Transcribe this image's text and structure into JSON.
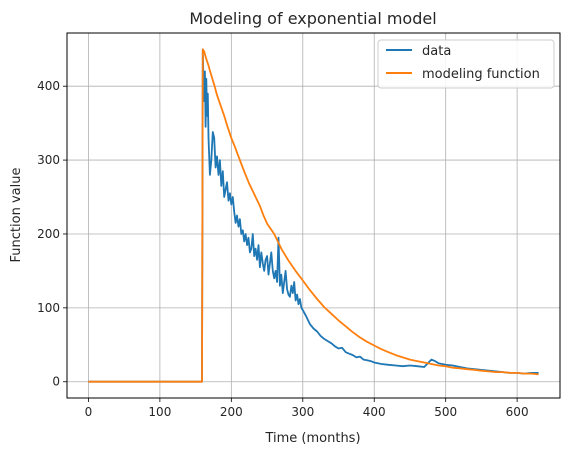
{
  "chart_data": {
    "type": "line",
    "title": "Modeling of exponential model",
    "xlabel": "Time (months)",
    "ylabel": "Function value",
    "xlim": [
      -30,
      660
    ],
    "ylim": [
      -22,
      472
    ],
    "xticks": [
      0,
      100,
      200,
      300,
      400,
      500,
      600
    ],
    "yticks": [
      0,
      100,
      200,
      300,
      400
    ],
    "grid": true,
    "legend_position": "top-right",
    "series": [
      {
        "name": "data",
        "color": "#1f77b4",
        "x": [
          0,
          159,
          160,
          161,
          162,
          163,
          164,
          165,
          166,
          167,
          168,
          170,
          172,
          174,
          176,
          178,
          180,
          182,
          184,
          186,
          188,
          190,
          192,
          194,
          196,
          198,
          200,
          202,
          204,
          206,
          208,
          210,
          212,
          214,
          216,
          218,
          220,
          222,
          224,
          226,
          228,
          230,
          232,
          234,
          236,
          238,
          240,
          242,
          244,
          246,
          248,
          250,
          252,
          254,
          256,
          258,
          260,
          262,
          264,
          266,
          268,
          270,
          272,
          274,
          276,
          278,
          280,
          282,
          284,
          286,
          288,
          290,
          292,
          294,
          296,
          298,
          300,
          305,
          310,
          315,
          320,
          325,
          330,
          335,
          340,
          345,
          350,
          355,
          360,
          365,
          370,
          375,
          380,
          385,
          390,
          395,
          400,
          410,
          420,
          430,
          440,
          450,
          460,
          470,
          480,
          485,
          490,
          495,
          500,
          510,
          520,
          530,
          540,
          550,
          560,
          570,
          580,
          590,
          600,
          610,
          620,
          630
        ],
        "y": [
          0,
          0,
          450,
          400,
          380,
          420,
          345,
          410,
          360,
          390,
          330,
          280,
          300,
          338,
          330,
          290,
          305,
          280,
          300,
          265,
          285,
          250,
          260,
          270,
          245,
          255,
          240,
          250,
          230,
          215,
          225,
          210,
          220,
          200,
          205,
          190,
          200,
          185,
          195,
          175,
          180,
          200,
          170,
          180,
          165,
          185,
          155,
          175,
          160,
          150,
          165,
          170,
          145,
          160,
          175,
          150,
          140,
          150,
          135,
          195,
          130,
          145,
          120,
          135,
          150,
          125,
          118,
          115,
          130,
          120,
          135,
          110,
          118,
          105,
          112,
          100,
          97,
          88,
          78,
          72,
          68,
          62,
          58,
          55,
          52,
          48,
          45,
          46,
          40,
          38,
          36,
          33,
          34,
          30,
          29,
          28,
          26,
          24,
          23,
          22,
          21,
          22,
          21,
          20,
          30,
          28,
          25,
          24,
          23,
          22,
          20,
          18,
          17,
          16,
          15,
          14,
          13,
          12,
          12,
          11,
          12,
          12
        ]
      },
      {
        "name": "modeling function",
        "color": "#ff7f0e",
        "x": [
          0,
          159,
          160,
          162,
          164,
          166,
          168,
          170,
          172,
          174,
          176,
          178,
          180,
          185,
          190,
          195,
          200,
          205,
          210,
          215,
          220,
          225,
          230,
          235,
          240,
          245,
          250,
          255,
          260,
          265,
          270,
          275,
          280,
          290,
          300,
          310,
          320,
          330,
          340,
          350,
          360,
          370,
          380,
          390,
          400,
          410,
          420,
          430,
          440,
          450,
          460,
          470,
          480,
          490,
          500,
          510,
          520,
          530,
          540,
          550,
          560,
          570,
          580,
          590,
          600,
          610,
          620,
          630
        ],
        "y": [
          0,
          0,
          450,
          447,
          440,
          434,
          428,
          421,
          415,
          408,
          402,
          395,
          388,
          374,
          360,
          344,
          330,
          318,
          305,
          292,
          280,
          268,
          258,
          248,
          238,
          225,
          214,
          207,
          200,
          190,
          180,
          172,
          164,
          150,
          137,
          124,
          112,
          101,
          92,
          83,
          75,
          67,
          60,
          54,
          49,
          44,
          40,
          36,
          33,
          30,
          28,
          26,
          24,
          22,
          21,
          19,
          18,
          17,
          16,
          15,
          14,
          13,
          13,
          12,
          12,
          11,
          11,
          10
        ]
      }
    ]
  }
}
